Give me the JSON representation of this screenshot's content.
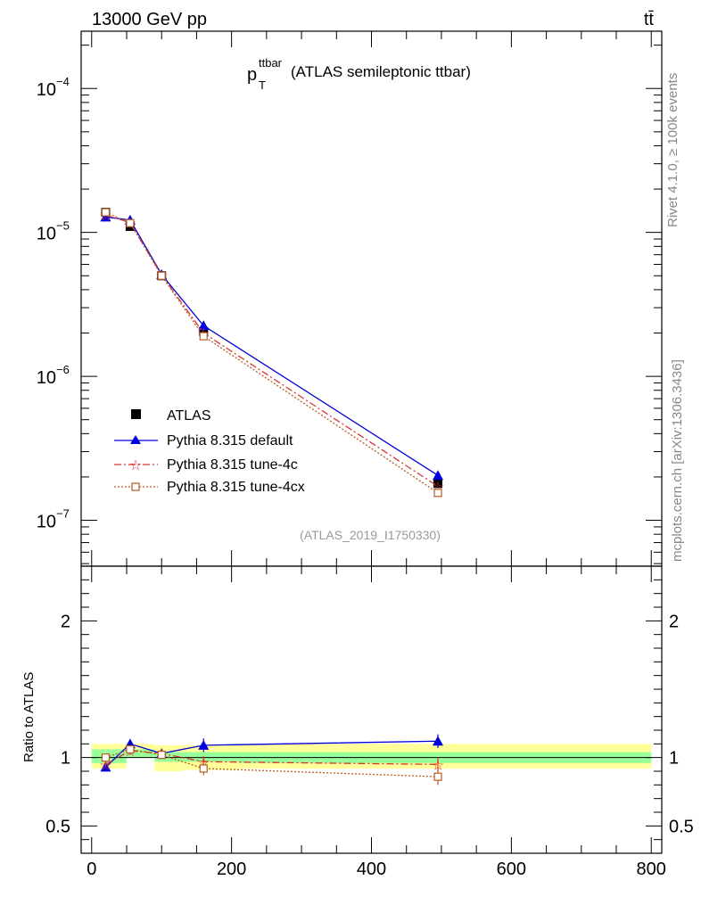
{
  "header": {
    "energy": "13000 GeV pp",
    "process": "tt̄"
  },
  "side_texts": {
    "rivet": "Rivet 4.1.0, ≥ 100k events",
    "mcplots": "mcplots.cern.ch [arXiv:1306.3436]"
  },
  "watermark": "(ATLAS_2019_I1750330)",
  "chart_data": {
    "type": "line",
    "title": {
      "main": "p",
      "superscript": "ttbar",
      "subscript": "T",
      "suffix": "(ATLAS semileptonic ttbar)"
    },
    "x": [
      20,
      55,
      100,
      160,
      495
    ],
    "xlim": [
      -15,
      815
    ],
    "xticks": [
      0,
      200,
      400,
      600,
      800
    ],
    "xtick_labels": [
      "0",
      "200",
      "400",
      "600",
      "800"
    ],
    "ylog": true,
    "ylim": [
      4.8e-08,
      0.00025
    ],
    "yticks": [
      1e-07,
      1e-06,
      1e-05,
      0.0001
    ],
    "ytick_labels": [
      [
        "10",
        "−7"
      ],
      [
        "10",
        "−6"
      ],
      [
        "10",
        "−5"
      ],
      [
        "10",
        "−4"
      ]
    ],
    "series": [
      {
        "name": "ATLAS",
        "values": [
          1.38e-05,
          1.1e-05,
          5e-06,
          2.05e-06,
          1.8e-07
        ],
        "color": "#000000",
        "marker": "square"
      },
      {
        "name": "Pythia 8.315 default",
        "values": [
          1.28e-05,
          1.22e-05,
          5.1e-06,
          2.25e-06,
          2.05e-07
        ],
        "color": "#0000dd",
        "marker": "triangle"
      },
      {
        "name": "Pythia 8.315 tune-4c",
        "values": [
          1.32e-05,
          1.17e-05,
          5.05e-06,
          2e-06,
          1.72e-07
        ],
        "color": "#dd3333",
        "marker": "star"
      },
      {
        "name": "Pythia 8.315 tune-4cx",
        "values": [
          1.38e-05,
          1.16e-05,
          5e-06,
          1.9e-06,
          1.55e-07
        ],
        "color": "#b85c1f",
        "marker": "opensquare"
      }
    ],
    "ratio": {
      "ylabel": "Ratio to ATLAS",
      "ylim": [
        0.3,
        2.4
      ],
      "yticks": [
        0.5,
        1,
        2
      ],
      "ytick_labels": [
        "0.5",
        "1",
        "2"
      ],
      "bins": [
        [
          0,
          50
        ],
        [
          50,
          90
        ],
        [
          90,
          130
        ],
        [
          130,
          210
        ],
        [
          210,
          800
        ]
      ],
      "band_green": [
        [
          0.96,
          1.06
        ],
        [
          1.0,
          1.06
        ],
        [
          0.97,
          1.04
        ],
        [
          0.97,
          1.04
        ],
        [
          0.96,
          1.04
        ]
      ],
      "band_yellow": [
        [
          0.92,
          1.1
        ],
        [
          1.0,
          1.1
        ],
        [
          0.9,
          1.09
        ],
        [
          0.91,
          1.09
        ],
        [
          0.92,
          1.1
        ]
      ],
      "series": [
        {
          "name": "Pythia 8.315 default",
          "values": [
            0.93,
            1.1,
            1.03,
            1.09,
            1.12
          ],
          "errors": [
            0.02,
            0.03,
            0.03,
            0.05,
            0.05
          ]
        },
        {
          "name": "Pythia 8.315 tune-4c",
          "values": [
            0.95,
            1.05,
            1.03,
            0.97,
            0.95
          ],
          "errors": [
            0.02,
            0.03,
            0.03,
            0.04,
            0.05
          ]
        },
        {
          "name": "Pythia 8.315 tune-4cx",
          "values": [
            1.0,
            1.06,
            1.02,
            0.92,
            0.86
          ],
          "errors": [
            0.02,
            0.03,
            0.03,
            0.05,
            0.06
          ]
        }
      ]
    }
  }
}
